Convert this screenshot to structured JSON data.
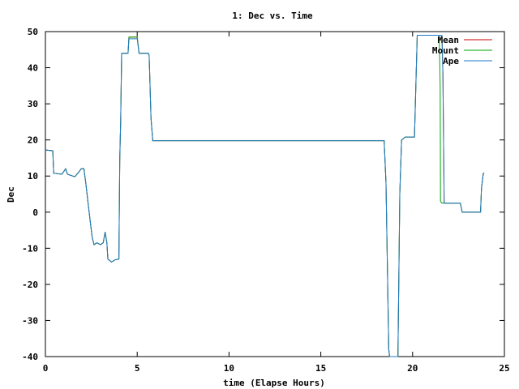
{
  "chart_data": {
    "type": "line",
    "title": "1: Dec vs. Time",
    "xlabel": "time (Elapse Hours)",
    "ylabel": "Dec",
    "xlim": [
      0,
      25
    ],
    "ylim": [
      -40,
      50
    ],
    "xticks": [
      0,
      5,
      10,
      15,
      20,
      25
    ],
    "yticks": [
      -40,
      -30,
      -20,
      -10,
      0,
      10,
      20,
      30,
      40,
      50
    ],
    "grid": false,
    "legend_position": "top-right",
    "series": [
      {
        "name": "Mean",
        "color": "#cc0000",
        "points": [
          [
            0,
            17.2
          ],
          [
            0.4,
            17.0
          ],
          [
            0.45,
            10.8
          ],
          [
            0.9,
            10.5
          ],
          [
            1.1,
            12.0
          ],
          [
            1.2,
            10.5
          ],
          [
            1.6,
            9.8
          ],
          [
            1.8,
            11.0
          ],
          [
            1.95,
            12.0
          ],
          [
            2.1,
            12.0
          ],
          [
            2.2,
            8.0
          ],
          [
            2.3,
            3.5
          ],
          [
            2.45,
            -3.0
          ],
          [
            2.55,
            -7.0
          ],
          [
            2.65,
            -9.0
          ],
          [
            2.8,
            -8.5
          ],
          [
            3.0,
            -9.0
          ],
          [
            3.15,
            -8.5
          ],
          [
            3.25,
            -5.5
          ],
          [
            3.35,
            -8.5
          ],
          [
            3.4,
            -13.0
          ],
          [
            3.6,
            -13.8
          ],
          [
            3.8,
            -13.2
          ],
          [
            4.0,
            -13.0
          ],
          [
            4.05,
            15.0
          ],
          [
            4.1,
            25.0
          ],
          [
            4.15,
            44.0
          ],
          [
            4.5,
            44.0
          ],
          [
            4.55,
            48.5
          ],
          [
            5.0,
            48.5
          ],
          [
            5.1,
            44.0
          ],
          [
            5.6,
            44.0
          ],
          [
            5.65,
            43.5
          ],
          [
            5.75,
            26.0
          ],
          [
            5.85,
            19.8
          ],
          [
            18.45,
            19.8
          ],
          [
            18.55,
            8.0
          ],
          [
            18.7,
            -38.0
          ],
          [
            18.75,
            -40.0
          ],
          [
            19.2,
            -40.0
          ],
          [
            19.3,
            5.0
          ],
          [
            19.4,
            20.0
          ],
          [
            19.6,
            20.8
          ],
          [
            20.1,
            20.8
          ],
          [
            20.15,
            30.0
          ],
          [
            20.25,
            49.0
          ],
          [
            21.6,
            49.0
          ],
          [
            21.65,
            38.0
          ],
          [
            21.72,
            2.5
          ],
          [
            22.6,
            2.5
          ],
          [
            22.7,
            0.0
          ],
          [
            23.7,
            0.0
          ],
          [
            23.75,
            6.5
          ],
          [
            23.85,
            10.8
          ],
          [
            23.9,
            10.8
          ]
        ]
      },
      {
        "name": "Mount",
        "color": "#00aa00",
        "points": [
          [
            0,
            17.2
          ],
          [
            0.4,
            17.0
          ],
          [
            0.45,
            10.8
          ],
          [
            0.9,
            10.5
          ],
          [
            1.1,
            12.0
          ],
          [
            1.2,
            10.5
          ],
          [
            1.6,
            9.8
          ],
          [
            1.8,
            11.0
          ],
          [
            1.95,
            12.0
          ],
          [
            2.1,
            12.0
          ],
          [
            2.2,
            8.0
          ],
          [
            2.3,
            3.5
          ],
          [
            2.45,
            -3.0
          ],
          [
            2.55,
            -7.0
          ],
          [
            2.65,
            -9.0
          ],
          [
            2.8,
            -8.5
          ],
          [
            3.0,
            -9.0
          ],
          [
            3.15,
            -8.5
          ],
          [
            3.25,
            -5.5
          ],
          [
            3.35,
            -8.5
          ],
          [
            3.4,
            -13.0
          ],
          [
            3.6,
            -13.8
          ],
          [
            3.8,
            -13.2
          ],
          [
            4.0,
            -13.0
          ],
          [
            4.05,
            15.0
          ],
          [
            4.1,
            25.0
          ],
          [
            4.15,
            44.0
          ],
          [
            4.5,
            44.0
          ],
          [
            4.55,
            48.5
          ],
          [
            5.0,
            48.5
          ],
          [
            5.1,
            44.0
          ],
          [
            5.6,
            44.0
          ],
          [
            5.65,
            43.5
          ],
          [
            5.75,
            26.0
          ],
          [
            5.85,
            19.8
          ],
          [
            18.45,
            19.8
          ],
          [
            18.55,
            8.0
          ],
          [
            18.7,
            -38.0
          ],
          [
            18.75,
            -40.0
          ],
          [
            19.2,
            -40.0
          ],
          [
            19.3,
            5.0
          ],
          [
            19.4,
            20.0
          ],
          [
            19.6,
            20.8
          ],
          [
            20.1,
            20.8
          ],
          [
            20.15,
            30.0
          ],
          [
            20.25,
            49.0
          ],
          [
            21.45,
            49.0
          ],
          [
            21.5,
            35.0
          ],
          [
            21.52,
            3.0
          ],
          [
            21.6,
            2.5
          ],
          [
            22.6,
            2.5
          ],
          [
            22.7,
            0.0
          ],
          [
            23.7,
            0.0
          ],
          [
            23.75,
            6.5
          ],
          [
            23.85,
            10.8
          ],
          [
            23.9,
            10.8
          ]
        ]
      },
      {
        "name": "Ape",
        "color": "#1e7ac8",
        "points": [
          [
            0,
            17.2
          ],
          [
            0.4,
            17.0
          ],
          [
            0.45,
            10.8
          ],
          [
            0.9,
            10.5
          ],
          [
            1.1,
            12.0
          ],
          [
            1.2,
            10.5
          ],
          [
            1.6,
            9.8
          ],
          [
            1.8,
            11.0
          ],
          [
            1.95,
            12.0
          ],
          [
            2.1,
            12.0
          ],
          [
            2.2,
            8.0
          ],
          [
            2.3,
            3.5
          ],
          [
            2.45,
            -3.0
          ],
          [
            2.55,
            -7.0
          ],
          [
            2.65,
            -9.0
          ],
          [
            2.8,
            -8.5
          ],
          [
            3.0,
            -9.0
          ],
          [
            3.15,
            -8.5
          ],
          [
            3.25,
            -5.5
          ],
          [
            3.35,
            -8.5
          ],
          [
            3.4,
            -13.0
          ],
          [
            3.6,
            -13.8
          ],
          [
            3.8,
            -13.2
          ],
          [
            4.0,
            -13.0
          ],
          [
            4.05,
            15.0
          ],
          [
            4.1,
            25.0
          ],
          [
            4.15,
            44.0
          ],
          [
            4.5,
            44.0
          ],
          [
            4.55,
            48.0
          ],
          [
            5.0,
            48.0
          ],
          [
            5.1,
            44.0
          ],
          [
            5.6,
            44.0
          ],
          [
            5.65,
            43.5
          ],
          [
            5.75,
            26.0
          ],
          [
            5.85,
            19.8
          ],
          [
            18.45,
            19.8
          ],
          [
            18.55,
            8.0
          ],
          [
            18.7,
            -38.0
          ],
          [
            18.75,
            -40.0
          ],
          [
            19.2,
            -40.0
          ],
          [
            19.3,
            5.0
          ],
          [
            19.4,
            20.0
          ],
          [
            19.6,
            20.8
          ],
          [
            20.1,
            20.8
          ],
          [
            20.15,
            30.0
          ],
          [
            20.25,
            49.0
          ],
          [
            21.6,
            49.0
          ],
          [
            21.65,
            38.0
          ],
          [
            21.72,
            2.5
          ],
          [
            22.6,
            2.5
          ],
          [
            22.7,
            0.0
          ],
          [
            23.7,
            0.0
          ],
          [
            23.75,
            6.5
          ],
          [
            23.85,
            10.8
          ],
          [
            23.9,
            10.8
          ]
        ]
      }
    ]
  }
}
